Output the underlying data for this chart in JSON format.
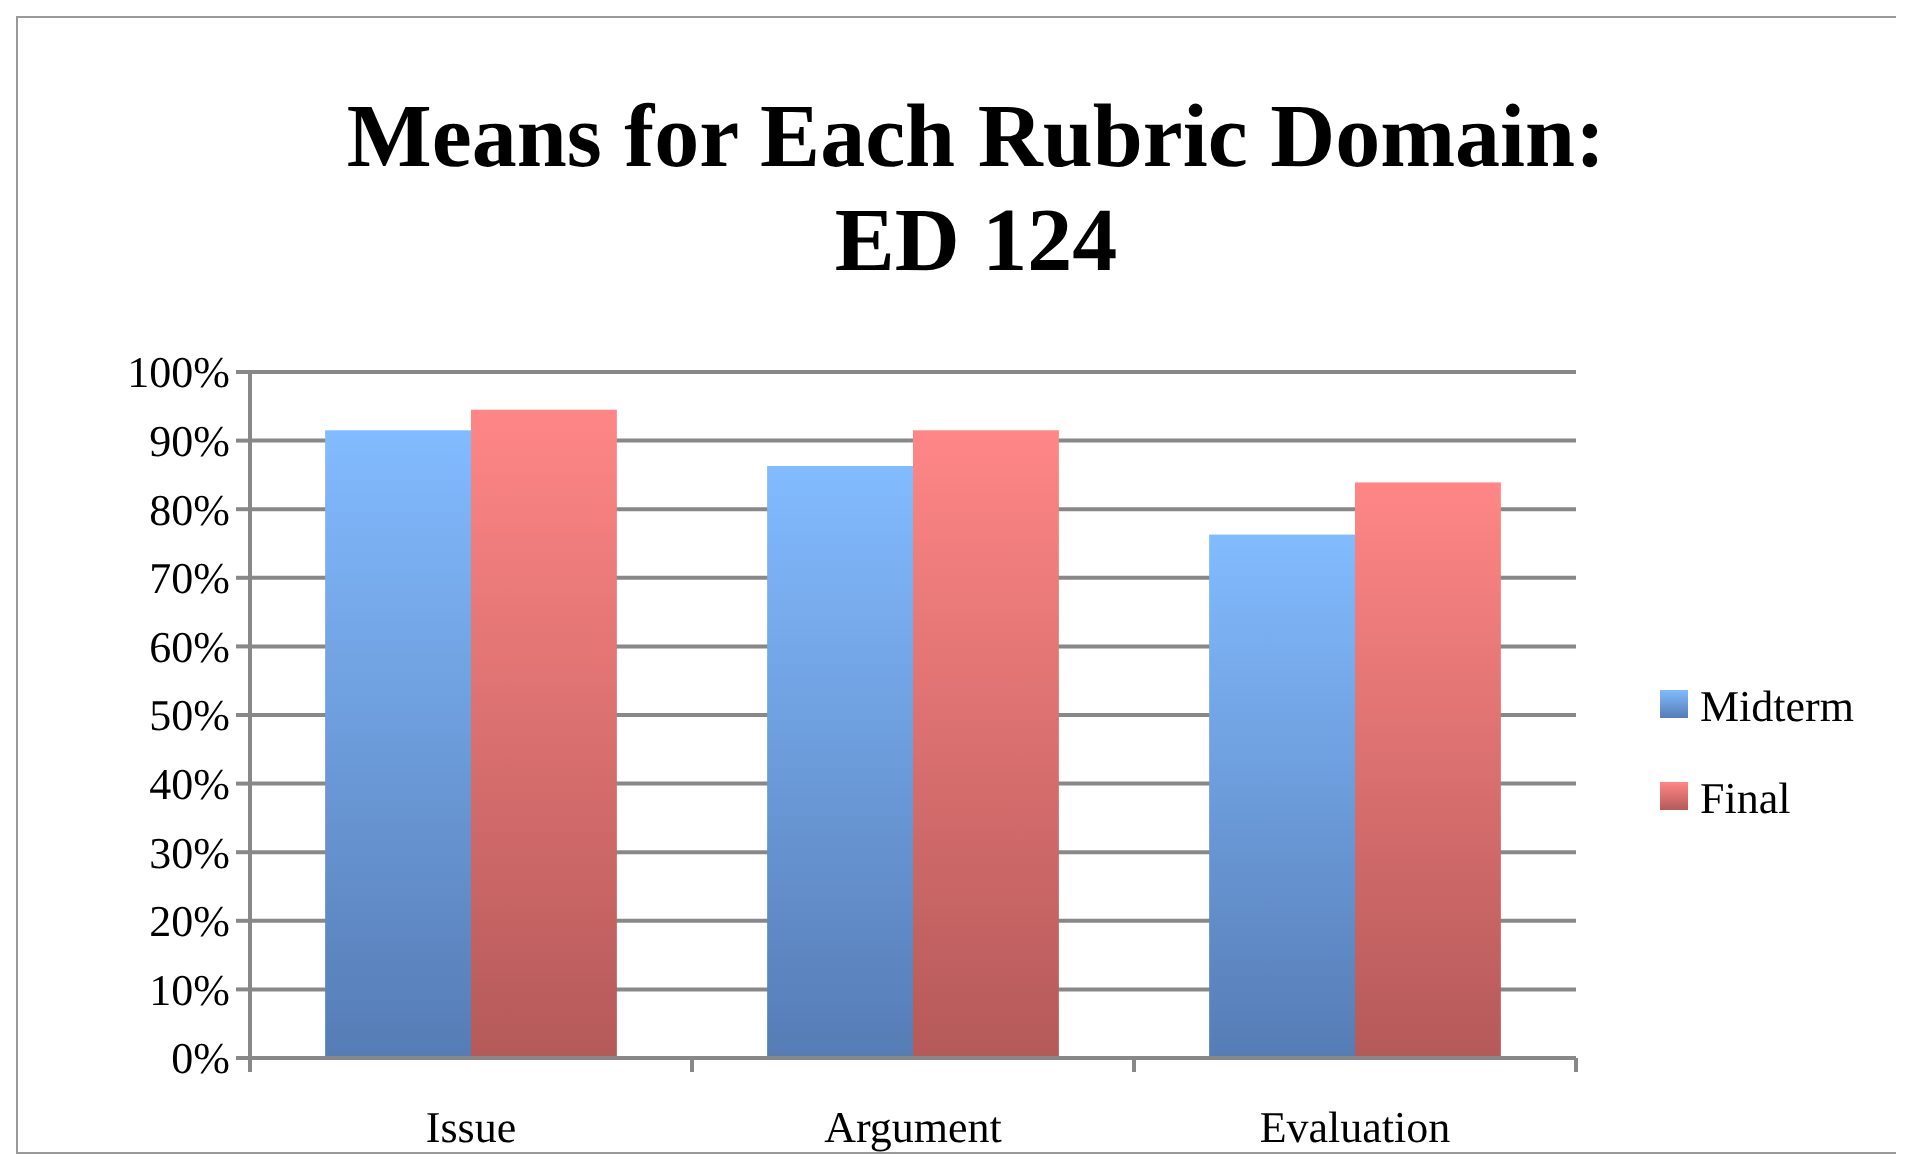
{
  "chart_data": {
    "type": "bar",
    "title": "Means for Each Rubric Domain: ED 124",
    "categories": [
      "Issue",
      "Argument",
      "Evaluation"
    ],
    "series": [
      {
        "name": "Midterm",
        "color": "#6f9fe8",
        "values": [
          91.5,
          86.3,
          76.3
        ]
      },
      {
        "name": "Final",
        "color": "#e87272",
        "values": [
          94.5,
          91.5,
          83.9
        ]
      }
    ],
    "ylim": [
      0,
      100
    ],
    "yticks": [
      {
        "value": 0,
        "label": "0%"
      },
      {
        "value": 10,
        "label": "10%"
      },
      {
        "value": 20,
        "label": "20%"
      },
      {
        "value": 30,
        "label": "30%"
      },
      {
        "value": 40,
        "label": "40%"
      },
      {
        "value": 50,
        "label": "50%"
      },
      {
        "value": 60,
        "label": "60%"
      },
      {
        "value": 70,
        "label": "70%"
      },
      {
        "value": 80,
        "label": "80%"
      },
      {
        "value": 90,
        "label": "90%"
      },
      {
        "value": 100,
        "label": "100%"
      }
    ],
    "grid": "y",
    "legend": "right"
  }
}
